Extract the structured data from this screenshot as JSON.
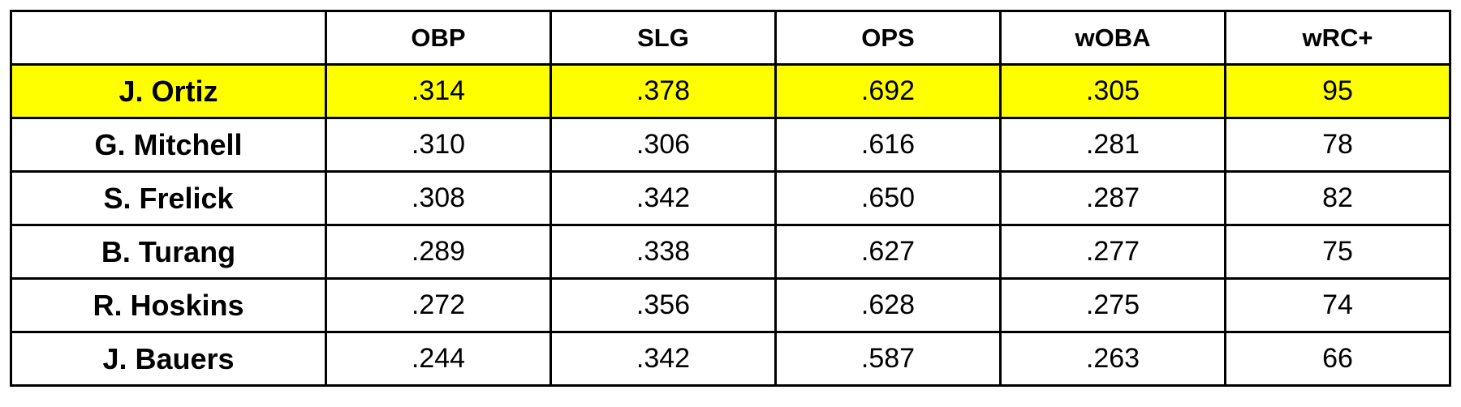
{
  "chart_data": {
    "type": "table",
    "columns": [
      "",
      "OBP",
      "SLG",
      "OPS",
      "wOBA",
      "wRC+"
    ],
    "rows": [
      {
        "name": "J. Ortiz",
        "values": [
          ".314",
          ".378",
          ".692",
          ".305",
          "95"
        ],
        "highlight": true
      },
      {
        "name": "G. Mitchell",
        "values": [
          ".310",
          ".306",
          ".616",
          ".281",
          "78"
        ],
        "highlight": false
      },
      {
        "name": "S. Frelick",
        "values": [
          ".308",
          ".342",
          ".650",
          ".287",
          "82"
        ],
        "highlight": false
      },
      {
        "name": "B. Turang",
        "values": [
          ".289",
          ".338",
          ".627",
          ".277",
          "75"
        ],
        "highlight": false
      },
      {
        "name": "R. Hoskins",
        "values": [
          ".272",
          ".356",
          ".628",
          ".275",
          "74"
        ],
        "highlight": false
      },
      {
        "name": "J. Bauers",
        "values": [
          ".244",
          ".342",
          ".587",
          ".263",
          "66"
        ],
        "highlight": false
      }
    ]
  },
  "colors": {
    "highlight": "#ffff00",
    "border": "#000000",
    "text": "#000000",
    "background": "#ffffff"
  }
}
